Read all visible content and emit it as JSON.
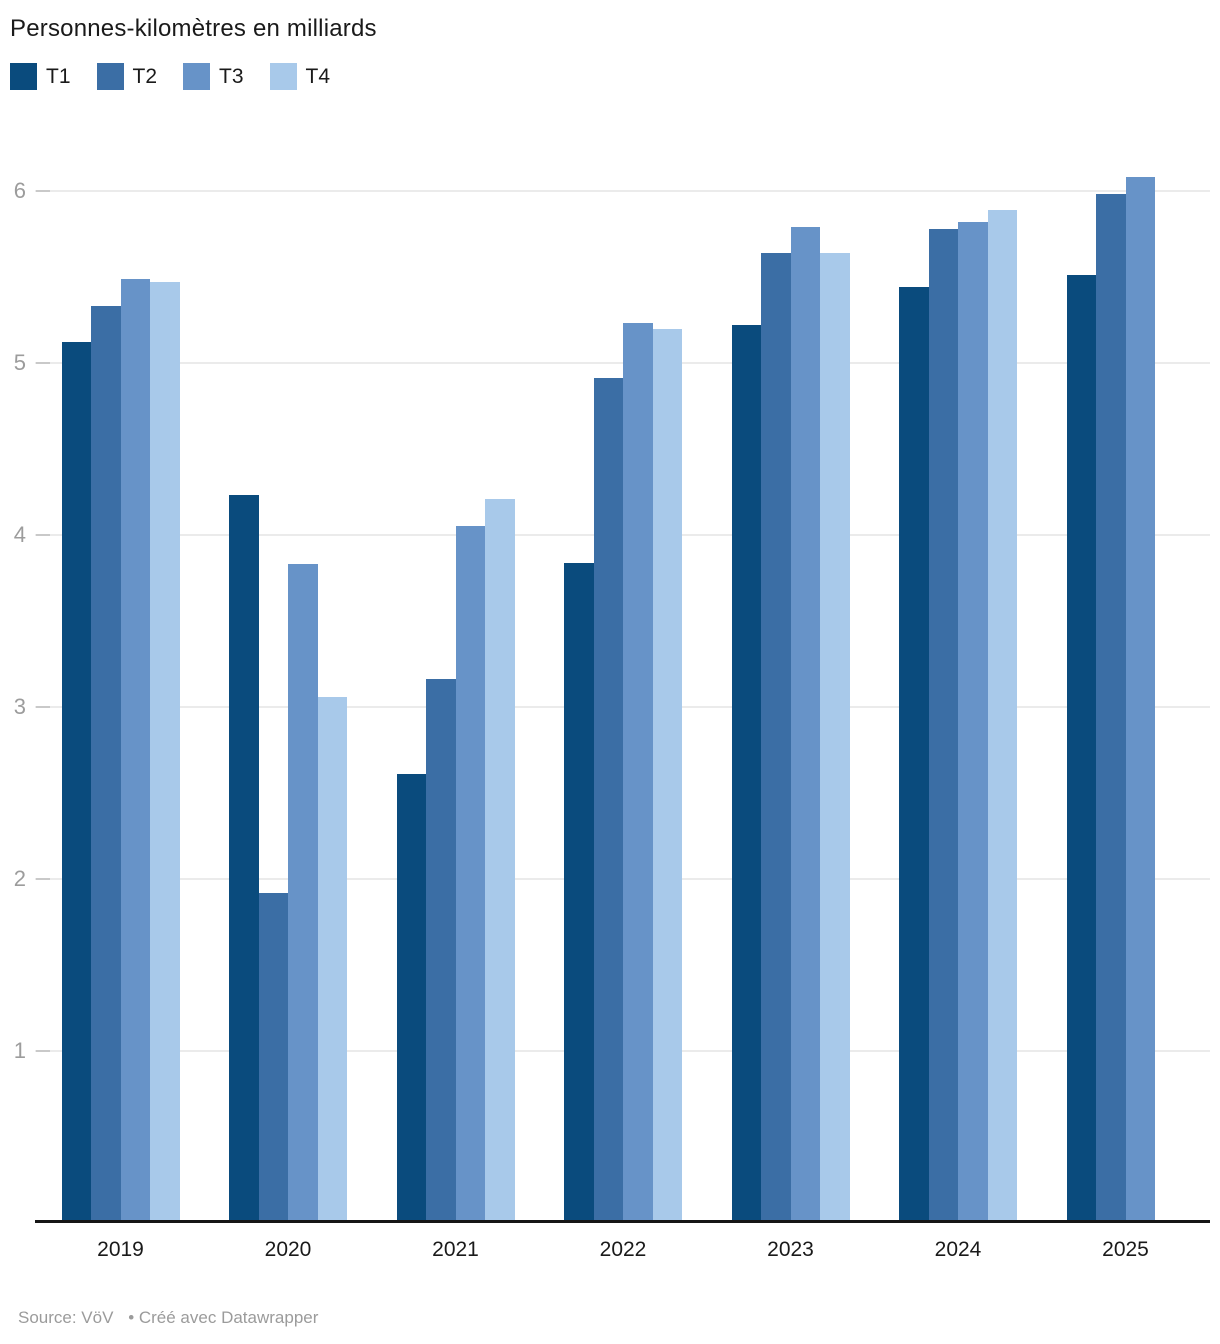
{
  "header": {
    "title": "Personnes-kilomètres en milliards"
  },
  "footer": {
    "source_label": "Source: VöV",
    "attribution": "• Créé avec Datawrapper"
  },
  "chart_data": {
    "type": "bar",
    "title": "Personnes-kilomètres en milliards",
    "categories": [
      "2019",
      "2020",
      "2021",
      "2022",
      "2023",
      "2024",
      "2025"
    ],
    "series": [
      {
        "name": "T1",
        "color": "#0a4b7d",
        "values": [
          5.12,
          4.23,
          2.61,
          3.84,
          5.22,
          5.44,
          5.51
        ]
      },
      {
        "name": "T2",
        "color": "#3b6ea5",
        "values": [
          5.33,
          1.92,
          3.16,
          4.91,
          5.64,
          5.78,
          5.98
        ]
      },
      {
        "name": "T3",
        "color": "#6793c8",
        "values": [
          5.49,
          3.83,
          4.05,
          5.23,
          5.79,
          5.82,
          6.08
        ]
      },
      {
        "name": "T4",
        "color": "#a8c9ea",
        "values": [
          5.47,
          3.06,
          4.21,
          5.2,
          5.64,
          5.89,
          null
        ]
      }
    ],
    "ylim": [
      0,
      6.24
    ],
    "yticks": [
      1,
      2,
      3,
      4,
      5,
      6
    ],
    "xlabel": "",
    "ylabel": "",
    "grid": "horizontal",
    "legend_position": "top"
  }
}
